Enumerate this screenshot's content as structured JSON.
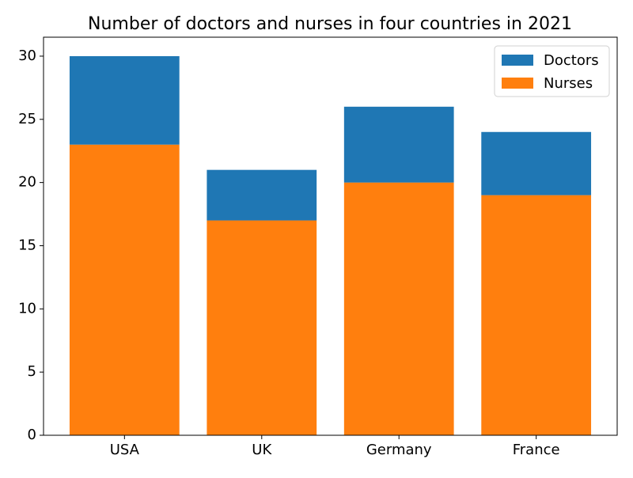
{
  "chart_data": {
    "type": "bar",
    "stacked": true,
    "title": "Number of doctors and nurses in four countries in 2021",
    "categories": [
      "USA",
      "UK",
      "Germany",
      "France"
    ],
    "series": [
      {
        "name": "Doctors",
        "color": "#1f77b4",
        "values": [
          7,
          4,
          6,
          5
        ]
      },
      {
        "name": "Nurses",
        "color": "#ff7f0e",
        "values": [
          23,
          17,
          20,
          19
        ]
      }
    ],
    "ylim": [
      0,
      31.5
    ],
    "yticks": [
      0,
      5,
      10,
      15,
      20,
      25,
      30
    ],
    "legend": "upper right",
    "grid": false
  }
}
